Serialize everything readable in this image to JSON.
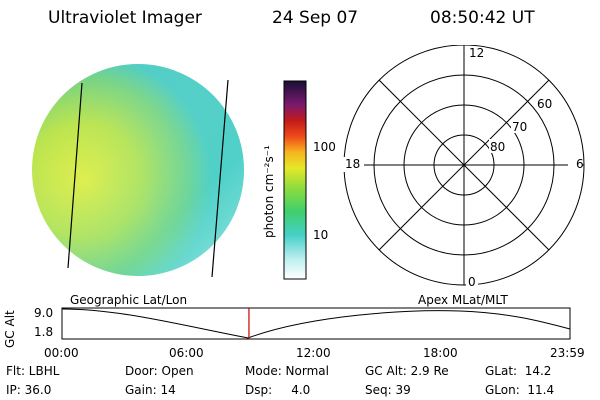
{
  "header": {
    "title": "Ultraviolet Imager",
    "date": "24 Sep 07",
    "time": "08:50:42 UT"
  },
  "colorbar": {
    "label": "photon cm⁻²s⁻¹",
    "ticks": [
      "100",
      "10"
    ]
  },
  "polar_plot": {
    "mlt_labels": {
      "top": "12",
      "left": "18",
      "right": "6",
      "bottom": "0"
    },
    "lat_labels": [
      "60",
      "70",
      "80"
    ]
  },
  "orbit_panel": {
    "left_caption": "Geographic Lat/Lon",
    "right_caption": "Apex MLat/MLT",
    "axis_label": "GC Alt",
    "y_ticks": [
      "9.0",
      "1.8"
    ],
    "x_ticks": [
      "00:00",
      "06:00",
      "12:00",
      "18:00",
      "23:59"
    ],
    "marker_time_fraction": 0.368,
    "marker_color": "#cc0000"
  },
  "status": {
    "flt": "Flt: LBHL",
    "ip": "IP: 36.0",
    "door": "Door: Open",
    "gain": "Gain: 14",
    "mode": "Mode: Normal",
    "dsp": "Dsp:     4.0",
    "gc_alt": "GC Alt: 2.9 Re",
    "seq": "Seq: 39",
    "glat": "GLat:  14.2",
    "glon": "GLon:  11.4"
  }
}
